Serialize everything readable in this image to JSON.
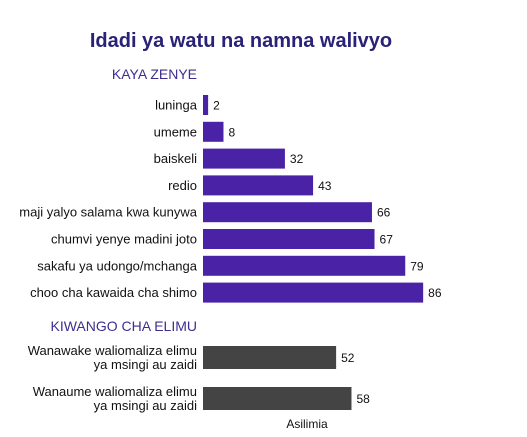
{
  "chart_data": {
    "type": "bar",
    "orientation": "horizontal",
    "title": "Idadi ya watu na namna walivyo",
    "xlabel": "Asilimia",
    "xlim": [
      0,
      100
    ],
    "colors": {
      "kaya": "#4a22a6",
      "elimu": "#444444",
      "title": "#2a2276",
      "section": "#3d2f8f"
    },
    "groups": [
      {
        "label": "KAYA ZENYE",
        "color_key": "kaya",
        "categories": [
          "luninga",
          "umeme",
          "baiskeli",
          "redio",
          "maji yalyo salama kwa kunywa",
          "chumvi yenye madini joto",
          "sakafu ya udongo/mchanga",
          "choo cha kawaida cha shimo"
        ],
        "values": [
          2,
          8,
          32,
          43,
          66,
          67,
          79,
          86
        ]
      },
      {
        "label": "KIWANGO CHA ELIMU",
        "color_key": "elimu",
        "categories": [
          [
            "Wanawake waliomaliza elimu",
            "ya msingi au zaidi"
          ],
          [
            "Wanaume waliomaliza elimu",
            "ya msingi au zaidi"
          ]
        ],
        "values": [
          52,
          58
        ]
      }
    ]
  }
}
